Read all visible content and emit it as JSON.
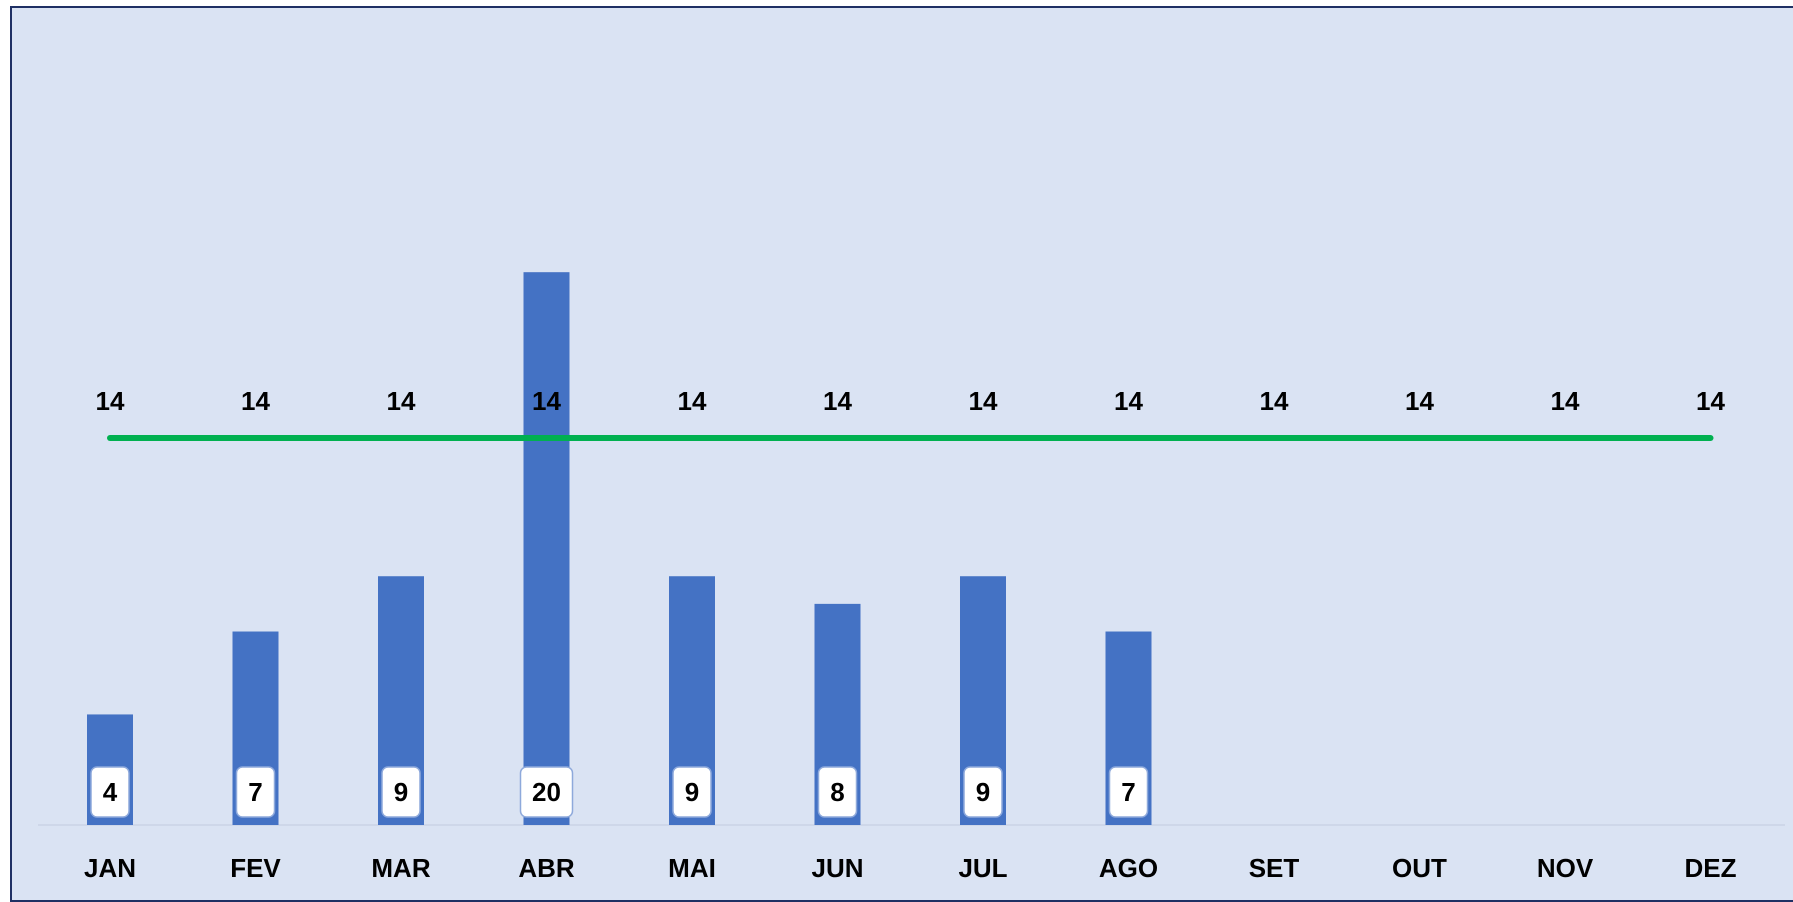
{
  "chart_data": {
    "type": "bar",
    "categories": [
      "JAN",
      "FEV",
      "MAR",
      "ABR",
      "MAI",
      "JUN",
      "JUL",
      "AGO",
      "SET",
      "OUT",
      "NOV",
      "DEZ"
    ],
    "series": [
      {
        "type": "bar",
        "values": [
          4,
          7,
          9,
          20,
          9,
          8,
          9,
          7,
          null,
          null,
          null,
          null
        ]
      },
      {
        "type": "line",
        "values": [
          14,
          14,
          14,
          14,
          14,
          14,
          14,
          14,
          14,
          14,
          14,
          14
        ]
      }
    ],
    "ylim": [
      0,
      28.4
    ],
    "grid": false,
    "legend": "none",
    "colors": {
      "bar": "#4472c4",
      "line": "#00b050",
      "background": "#dae3f3",
      "border": "#1f3064"
    }
  }
}
